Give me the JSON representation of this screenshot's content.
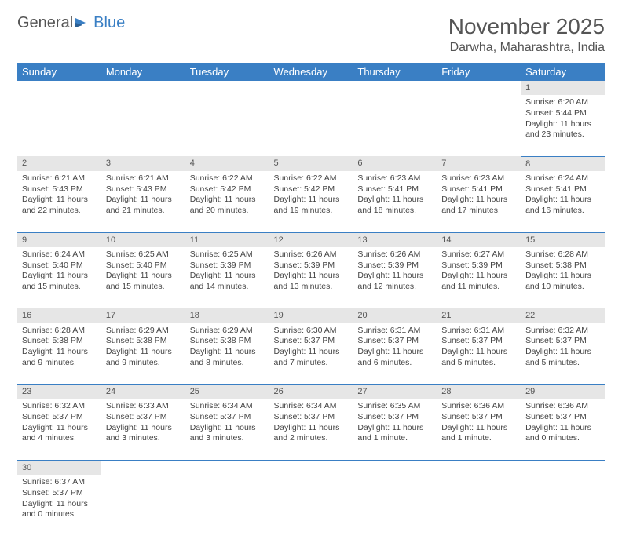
{
  "logo": {
    "text1": "General",
    "text2": "Blue"
  },
  "title": "November 2025",
  "location": "Darwha, Maharashtra, India",
  "theme": {
    "header_bg": "#3a7fc4",
    "header_fg": "#ffffff",
    "daynum_bg": "#e6e6e6",
    "rule_color": "#3a7fc4",
    "page_bg": "#ffffff"
  },
  "weekdays": [
    "Sunday",
    "Monday",
    "Tuesday",
    "Wednesday",
    "Thursday",
    "Friday",
    "Saturday"
  ],
  "weeks": [
    [
      null,
      null,
      null,
      null,
      null,
      null,
      {
        "n": "1",
        "sr": "Sunrise: 6:20 AM",
        "ss": "Sunset: 5:44 PM",
        "dl": "Daylight: 11 hours and 23 minutes."
      }
    ],
    [
      {
        "n": "2",
        "sr": "Sunrise: 6:21 AM",
        "ss": "Sunset: 5:43 PM",
        "dl": "Daylight: 11 hours and 22 minutes."
      },
      {
        "n": "3",
        "sr": "Sunrise: 6:21 AM",
        "ss": "Sunset: 5:43 PM",
        "dl": "Daylight: 11 hours and 21 minutes."
      },
      {
        "n": "4",
        "sr": "Sunrise: 6:22 AM",
        "ss": "Sunset: 5:42 PM",
        "dl": "Daylight: 11 hours and 20 minutes."
      },
      {
        "n": "5",
        "sr": "Sunrise: 6:22 AM",
        "ss": "Sunset: 5:42 PM",
        "dl": "Daylight: 11 hours and 19 minutes."
      },
      {
        "n": "6",
        "sr": "Sunrise: 6:23 AM",
        "ss": "Sunset: 5:41 PM",
        "dl": "Daylight: 11 hours and 18 minutes."
      },
      {
        "n": "7",
        "sr": "Sunrise: 6:23 AM",
        "ss": "Sunset: 5:41 PM",
        "dl": "Daylight: 11 hours and 17 minutes."
      },
      {
        "n": "8",
        "sr": "Sunrise: 6:24 AM",
        "ss": "Sunset: 5:41 PM",
        "dl": "Daylight: 11 hours and 16 minutes."
      }
    ],
    [
      {
        "n": "9",
        "sr": "Sunrise: 6:24 AM",
        "ss": "Sunset: 5:40 PM",
        "dl": "Daylight: 11 hours and 15 minutes."
      },
      {
        "n": "10",
        "sr": "Sunrise: 6:25 AM",
        "ss": "Sunset: 5:40 PM",
        "dl": "Daylight: 11 hours and 15 minutes."
      },
      {
        "n": "11",
        "sr": "Sunrise: 6:25 AM",
        "ss": "Sunset: 5:39 PM",
        "dl": "Daylight: 11 hours and 14 minutes."
      },
      {
        "n": "12",
        "sr": "Sunrise: 6:26 AM",
        "ss": "Sunset: 5:39 PM",
        "dl": "Daylight: 11 hours and 13 minutes."
      },
      {
        "n": "13",
        "sr": "Sunrise: 6:26 AM",
        "ss": "Sunset: 5:39 PM",
        "dl": "Daylight: 11 hours and 12 minutes."
      },
      {
        "n": "14",
        "sr": "Sunrise: 6:27 AM",
        "ss": "Sunset: 5:39 PM",
        "dl": "Daylight: 11 hours and 11 minutes."
      },
      {
        "n": "15",
        "sr": "Sunrise: 6:28 AM",
        "ss": "Sunset: 5:38 PM",
        "dl": "Daylight: 11 hours and 10 minutes."
      }
    ],
    [
      {
        "n": "16",
        "sr": "Sunrise: 6:28 AM",
        "ss": "Sunset: 5:38 PM",
        "dl": "Daylight: 11 hours and 9 minutes."
      },
      {
        "n": "17",
        "sr": "Sunrise: 6:29 AM",
        "ss": "Sunset: 5:38 PM",
        "dl": "Daylight: 11 hours and 9 minutes."
      },
      {
        "n": "18",
        "sr": "Sunrise: 6:29 AM",
        "ss": "Sunset: 5:38 PM",
        "dl": "Daylight: 11 hours and 8 minutes."
      },
      {
        "n": "19",
        "sr": "Sunrise: 6:30 AM",
        "ss": "Sunset: 5:37 PM",
        "dl": "Daylight: 11 hours and 7 minutes."
      },
      {
        "n": "20",
        "sr": "Sunrise: 6:31 AM",
        "ss": "Sunset: 5:37 PM",
        "dl": "Daylight: 11 hours and 6 minutes."
      },
      {
        "n": "21",
        "sr": "Sunrise: 6:31 AM",
        "ss": "Sunset: 5:37 PM",
        "dl": "Daylight: 11 hours and 5 minutes."
      },
      {
        "n": "22",
        "sr": "Sunrise: 6:32 AM",
        "ss": "Sunset: 5:37 PM",
        "dl": "Daylight: 11 hours and 5 minutes."
      }
    ],
    [
      {
        "n": "23",
        "sr": "Sunrise: 6:32 AM",
        "ss": "Sunset: 5:37 PM",
        "dl": "Daylight: 11 hours and 4 minutes."
      },
      {
        "n": "24",
        "sr": "Sunrise: 6:33 AM",
        "ss": "Sunset: 5:37 PM",
        "dl": "Daylight: 11 hours and 3 minutes."
      },
      {
        "n": "25",
        "sr": "Sunrise: 6:34 AM",
        "ss": "Sunset: 5:37 PM",
        "dl": "Daylight: 11 hours and 3 minutes."
      },
      {
        "n": "26",
        "sr": "Sunrise: 6:34 AM",
        "ss": "Sunset: 5:37 PM",
        "dl": "Daylight: 11 hours and 2 minutes."
      },
      {
        "n": "27",
        "sr": "Sunrise: 6:35 AM",
        "ss": "Sunset: 5:37 PM",
        "dl": "Daylight: 11 hours and 1 minute."
      },
      {
        "n": "28",
        "sr": "Sunrise: 6:36 AM",
        "ss": "Sunset: 5:37 PM",
        "dl": "Daylight: 11 hours and 1 minute."
      },
      {
        "n": "29",
        "sr": "Sunrise: 6:36 AM",
        "ss": "Sunset: 5:37 PM",
        "dl": "Daylight: 11 hours and 0 minutes."
      }
    ],
    [
      {
        "n": "30",
        "sr": "Sunrise: 6:37 AM",
        "ss": "Sunset: 5:37 PM",
        "dl": "Daylight: 11 hours and 0 minutes."
      },
      null,
      null,
      null,
      null,
      null,
      null
    ]
  ]
}
